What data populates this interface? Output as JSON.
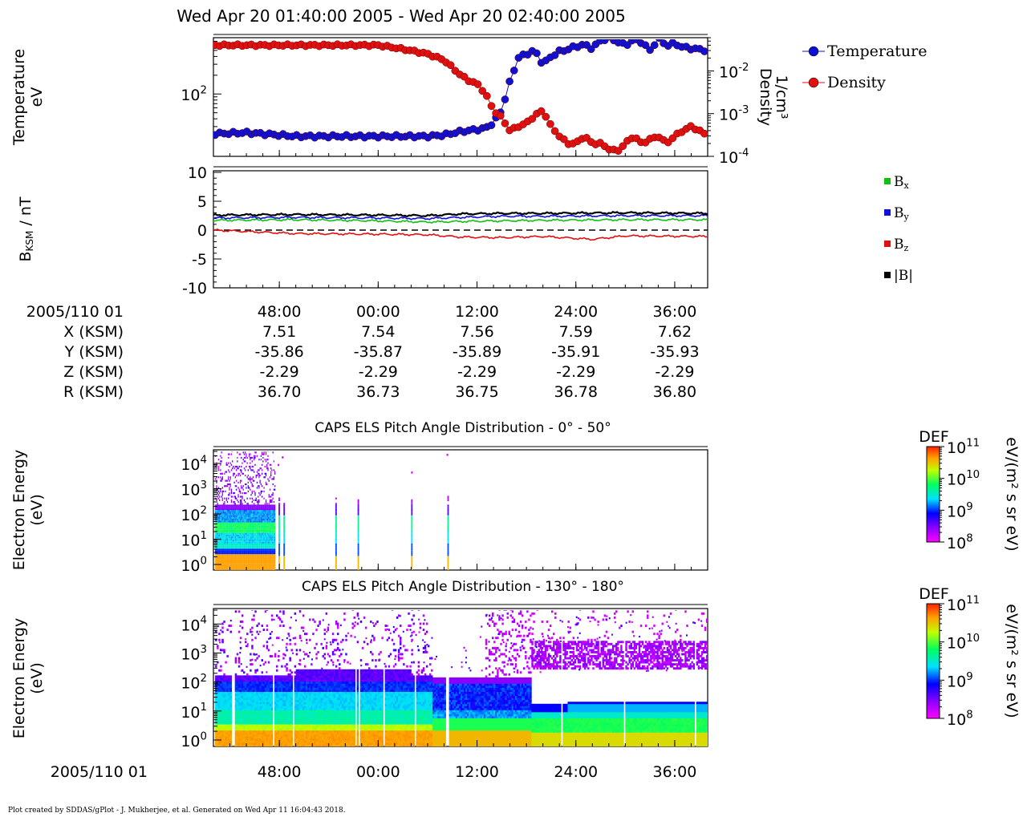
{
  "title": "Wed Apr 20 01:40:00 2005 - Wed Apr 20 02:40:00 2005",
  "footer": "Plot created by SDDAS/gPlot - J. Mukherjee, et al.  Generated on Wed Apr 11 16:04:43 2018.",
  "colors": {
    "temperature": "#1010d0",
    "density": "#e01010",
    "bx": "#10c010",
    "by": "#1010e0",
    "bz": "#e01010",
    "btot": "#000000"
  },
  "chart_data": [
    {
      "type": "scatter",
      "panel": "plasma-moments",
      "ylabel_left": [
        "Temperature",
        "eV"
      ],
      "ylabel_right": [
        "Density",
        "1/cm³"
      ],
      "left_ticks": [
        {
          "label": "10",
          "exp": "2",
          "value": 100
        }
      ],
      "right_ticks": [
        {
          "label": "10",
          "exp": "-2",
          "value": 0.01
        },
        {
          "label": "10",
          "exp": "-3",
          "value": 0.001
        },
        {
          "label": "10",
          "exp": "-4",
          "value": 0.0001
        }
      ],
      "ylim_left": [
        10,
        800
      ],
      "ylim_right": [
        0.0001,
        0.06
      ],
      "x_minutes_range": [
        40,
        100
      ],
      "legend": [
        "Temperature",
        "Density"
      ],
      "series": [
        {
          "name": "Temperature",
          "x": [
            40,
            44,
            48,
            50,
            52,
            56,
            60,
            64,
            66,
            68,
            70,
            72,
            73,
            74,
            75,
            76,
            77,
            78,
            79,
            80,
            81,
            82,
            83,
            84,
            85,
            86,
            87,
            88,
            89,
            90,
            91,
            92,
            93,
            94,
            95,
            96,
            97,
            98,
            99,
            100
          ],
          "y": [
            23,
            24,
            22,
            21,
            21,
            21,
            21,
            21,
            21,
            22,
            25,
            27,
            28,
            35,
            55,
            160,
            380,
            440,
            500,
            300,
            400,
            480,
            520,
            580,
            620,
            540,
            720,
            800,
            700,
            600,
            750,
            680,
            500,
            780,
            600,
            650,
            560,
            540,
            520,
            500
          ]
        },
        {
          "name": "Density",
          "x": [
            40,
            44,
            48,
            52,
            56,
            60,
            62,
            64,
            66,
            68,
            69,
            70,
            71,
            72,
            73,
            74,
            75,
            76,
            77,
            78,
            79,
            80,
            81,
            82,
            83,
            84,
            85,
            86,
            87,
            88,
            89,
            90,
            91,
            92,
            93,
            94,
            95,
            96,
            97,
            98,
            99,
            100
          ],
          "y": [
            0.04,
            0.04,
            0.04,
            0.04,
            0.04,
            0.04,
            0.035,
            0.03,
            0.025,
            0.018,
            0.012,
            0.008,
            0.006,
            0.005,
            0.003,
            0.0012,
            0.0008,
            0.0004,
            0.0005,
            0.0006,
            0.0009,
            0.0012,
            0.0005,
            0.0003,
            0.0002,
            0.0002,
            0.0003,
            0.0002,
            0.0002,
            0.00015,
            0.00013,
            0.0002,
            0.0003,
            0.0002,
            0.00025,
            0.0003,
            0.0002,
            0.0003,
            0.0004,
            0.0005,
            0.0004,
            0.0003
          ]
        }
      ]
    },
    {
      "type": "line",
      "panel": "magnetic-field",
      "ylabel": "BKSM / nT",
      "yticks": [
        10,
        5,
        0,
        -5,
        -10
      ],
      "ylim": [
        -10,
        10
      ],
      "x_minutes_range": [
        40,
        100
      ],
      "legend": [
        "Bx",
        "By",
        "Bz",
        "|B|"
      ],
      "series": [
        {
          "name": "Bx",
          "x": [
            40,
            50,
            60,
            66,
            70,
            75,
            80,
            90,
            100
          ],
          "y": [
            1.7,
            1.8,
            1.6,
            1.4,
            1.5,
            1.6,
            1.7,
            1.8,
            1.8
          ]
        },
        {
          "name": "By",
          "x": [
            40,
            50,
            60,
            66,
            70,
            75,
            80,
            90,
            100
          ],
          "y": [
            2.1,
            2.2,
            2.1,
            2.0,
            2.2,
            2.4,
            2.4,
            2.5,
            2.5
          ]
        },
        {
          "name": "Bz",
          "x": [
            40,
            50,
            60,
            66,
            70,
            75,
            80,
            86,
            90,
            100
          ],
          "y": [
            0.0,
            -0.6,
            -0.7,
            -0.8,
            -1.2,
            -1.3,
            -1.1,
            -1.6,
            -1.0,
            -1.1
          ]
        },
        {
          "name": "|B|",
          "x": [
            40,
            50,
            60,
            66,
            70,
            75,
            80,
            90,
            100
          ],
          "y": [
            2.6,
            2.7,
            2.6,
            2.5,
            2.8,
            2.9,
            2.9,
            3.0,
            2.9
          ]
        }
      ]
    },
    {
      "type": "heatmap",
      "panel": "els-pad-0-50",
      "title": "CAPS ELS Pitch Angle Distribution - 0° - 50°",
      "ylabel": [
        "Electron Energy",
        "(eV)"
      ],
      "ylim": [
        0.6,
        30000
      ],
      "yticks": [
        {
          "label": "10",
          "exp": "4"
        },
        {
          "label": "10",
          "exp": "3"
        },
        {
          "label": "10",
          "exp": "2"
        },
        {
          "label": "10",
          "exp": "1"
        },
        {
          "label": "10",
          "exp": "0"
        }
      ],
      "colorbar": {
        "title": "DEF",
        "units": "eV/(m² s sr eV)",
        "range": [
          100000000,
          100000000000
        ],
        "ticks": [
          {
            "label": "10",
            "exp": "11"
          },
          {
            "label": "10",
            "exp": "10"
          },
          {
            "label": "10",
            "exp": "9"
          },
          {
            "label": "10",
            "exp": "8"
          }
        ]
      }
    },
    {
      "type": "heatmap",
      "panel": "els-pad-130-180",
      "title": "CAPS ELS Pitch Angle Distribution - 130° - 180°",
      "ylabel": [
        "Electron Energy",
        "(eV)"
      ],
      "ylim": [
        0.6,
        30000
      ],
      "yticks": [
        {
          "label": "10",
          "exp": "4"
        },
        {
          "label": "10",
          "exp": "3"
        },
        {
          "label": "10",
          "exp": "2"
        },
        {
          "label": "10",
          "exp": "1"
        },
        {
          "label": "10",
          "exp": "0"
        }
      ],
      "colorbar": {
        "title": "DEF",
        "units": "eV/(m² s sr eV)",
        "range": [
          100000000,
          100000000000
        ],
        "ticks": [
          {
            "label": "10",
            "exp": "11"
          },
          {
            "label": "10",
            "exp": "10"
          },
          {
            "label": "10",
            "exp": "9"
          },
          {
            "label": "10",
            "exp": "8"
          }
        ]
      }
    }
  ],
  "xaxis": {
    "tick_minutes": [
      48,
      60,
      72,
      84,
      96
    ],
    "tick_labels": [
      "48:00",
      "00:00",
      "12:00",
      "24:00",
      "36:00"
    ],
    "date_label": "2005/110 01",
    "bottom_date_label": "2005/110 01"
  },
  "ephemeris": {
    "rows": [
      {
        "label": "X (KSM)",
        "values": [
          "7.51",
          "7.54",
          "7.56",
          "7.59",
          "7.62"
        ]
      },
      {
        "label": "Y (KSM)",
        "values": [
          "-35.86",
          "-35.87",
          "-35.89",
          "-35.91",
          "-35.93"
        ]
      },
      {
        "label": "Z (KSM)",
        "values": [
          "-2.29",
          "-2.29",
          "-2.29",
          "-2.29",
          "-2.29"
        ]
      },
      {
        "label": "R (KSM)",
        "values": [
          "36.70",
          "36.73",
          "36.75",
          "36.78",
          "36.80"
        ]
      }
    ]
  }
}
